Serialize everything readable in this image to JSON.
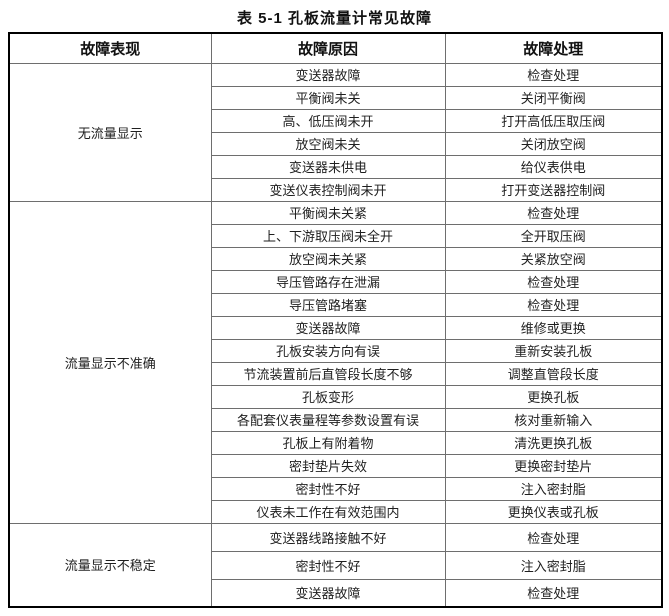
{
  "page": {
    "title": "表 5-1  孔板流量计常见故障"
  },
  "table": {
    "headers": [
      "故障表现",
      "故障原因",
      "故障处理"
    ],
    "sections": [
      {
        "symptom": "无流量显示",
        "rows": [
          {
            "cause": "变送器故障",
            "remedy": "检查处理"
          },
          {
            "cause": "平衡阀未关",
            "remedy": "关闭平衡阀"
          },
          {
            "cause": "高、低压阀未开",
            "remedy": "打开高低压取压阀"
          },
          {
            "cause": "放空阀未关",
            "remedy": "关闭放空阀"
          },
          {
            "cause": "变送器未供电",
            "remedy": "给仪表供电"
          },
          {
            "cause": "变送仪表控制阀未开",
            "remedy": "打开变送器控制阀"
          }
        ]
      },
      {
        "symptom": "流量显示不准确",
        "rows": [
          {
            "cause": "平衡阀未关紧",
            "remedy": "检查处理"
          },
          {
            "cause": "上、下游取压阀未全开",
            "remedy": "全开取压阀"
          },
          {
            "cause": "放空阀未关紧",
            "remedy": "关紧放空阀"
          },
          {
            "cause": "导压管路存在泄漏",
            "remedy": "检查处理"
          },
          {
            "cause": "导压管路堵塞",
            "remedy": "检查处理"
          },
          {
            "cause": "变送器故障",
            "remedy": "维修或更换"
          },
          {
            "cause": "孔板安装方向有误",
            "remedy": "重新安装孔板"
          },
          {
            "cause": "节流装置前后直管段长度不够",
            "remedy": "调整直管段长度"
          },
          {
            "cause": "孔板变形",
            "remedy": "更换孔板"
          },
          {
            "cause": "各配套仪表量程等参数设置有误",
            "remedy": "核对重新输入"
          },
          {
            "cause": "孔板上有附着物",
            "remedy": "清洗更换孔板"
          },
          {
            "cause": "密封垫片失效",
            "remedy": "更换密封垫片"
          },
          {
            "cause": "密封性不好",
            "remedy": "注入密封脂"
          },
          {
            "cause": "仪表未工作在有效范围内",
            "remedy": "更换仪表或孔板"
          }
        ]
      },
      {
        "symptom": "流量显示不稳定",
        "rows": [
          {
            "cause": "变送器线路接触不好",
            "remedy": "检查处理"
          },
          {
            "cause": "密封性不好",
            "remedy": "注入密封脂"
          },
          {
            "cause": "变送器故障",
            "remedy": "检查处理"
          }
        ]
      }
    ]
  },
  "colors": {
    "background": "#ffffff",
    "text": "#1f1f1f",
    "border_outer": "#000000",
    "border_inner": "#6e6e6e"
  }
}
